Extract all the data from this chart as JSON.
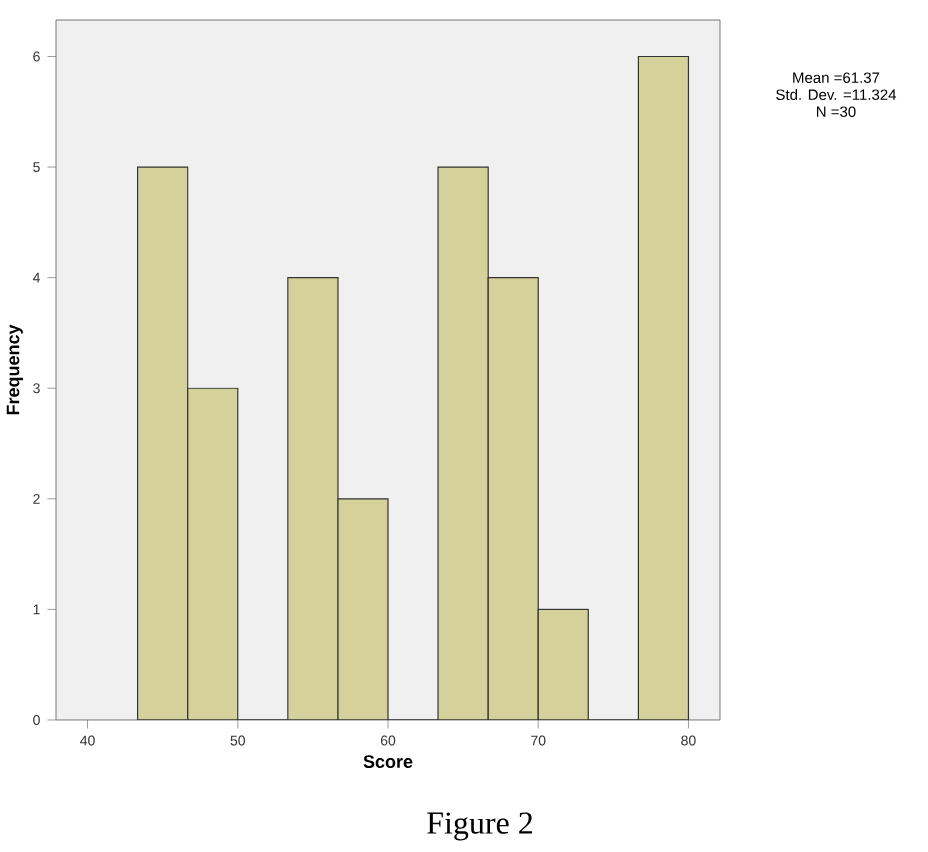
{
  "chart_data": {
    "type": "histogram",
    "xlabel": "Score",
    "ylabel": "Frequency",
    "bins": [
      43.33,
      46.67,
      50,
      53.33,
      56.67,
      60,
      63.33,
      66.67,
      70,
      73.33,
      76.67,
      80
    ],
    "values": [
      5,
      3,
      0,
      4,
      2,
      0,
      5,
      4,
      1,
      0,
      6
    ],
    "color": "#d4d19b",
    "xlim": [
      37.9,
      82.1
    ],
    "ylim": [
      0,
      6.33
    ],
    "xticks": [
      40,
      50,
      60,
      70,
      80
    ],
    "yticks": [
      0,
      1,
      2,
      3,
      4,
      5,
      6
    ],
    "grid": false,
    "annotations": [
      "Mean =61.37\nStd. Dev. =11.324\nN =30",
      "Figure 2"
    ]
  }
}
